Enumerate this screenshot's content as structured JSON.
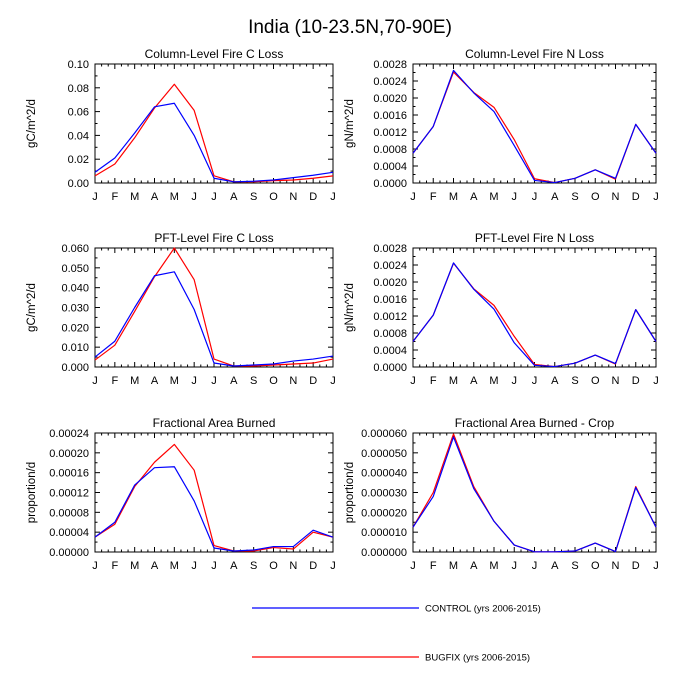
{
  "page": {
    "title": "India (10-23.5N,70-90E)"
  },
  "legend": {
    "items": [
      {
        "series_key": "control",
        "label": "CONTROL (yrs 2006-2015)",
        "color": "#0000ff"
      },
      {
        "series_key": "bugfix",
        "label": "BUGFIX (yrs 2006-2015)",
        "color": "#ff0000"
      }
    ]
  },
  "chart_data": [
    {
      "id": "column-fire-c-loss",
      "type": "line",
      "title": "Column-Level Fire C Loss",
      "xlabel": "",
      "ylabel": "gC/m^2/d",
      "categories": [
        "J",
        "F",
        "M",
        "A",
        "M",
        "J",
        "J",
        "A",
        "S",
        "O",
        "N",
        "D",
        "J"
      ],
      "ylim": [
        0,
        0.1
      ],
      "yticks": [
        0,
        0.02,
        0.04,
        0.06,
        0.08,
        0.1
      ],
      "yticklabels": [
        "0.00",
        "0.02",
        "0.04",
        "0.06",
        "0.08",
        "0.10"
      ],
      "series": [
        {
          "key": "control",
          "name": "CONTROL (yrs 2006-2015)",
          "color": "#0000ff",
          "values": [
            0.009,
            0.021,
            0.042,
            0.064,
            0.067,
            0.04,
            0.004,
            0.001,
            0.0015,
            0.0025,
            0.0045,
            0.0065,
            0.009
          ]
        },
        {
          "key": "bugfix",
          "name": "BUGFIX (yrs 2006-2015)",
          "color": "#ff0000",
          "values": [
            0.006,
            0.016,
            0.038,
            0.063,
            0.083,
            0.061,
            0.006,
            0.001,
            0.001,
            0.002,
            0.0025,
            0.004,
            0.006
          ]
        }
      ]
    },
    {
      "id": "column-fire-n-loss",
      "type": "line",
      "title": "Column-Level Fire N Loss",
      "xlabel": "",
      "ylabel": "gN/m^2/d",
      "categories": [
        "J",
        "F",
        "M",
        "A",
        "M",
        "J",
        "J",
        "A",
        "S",
        "O",
        "N",
        "D",
        "J"
      ],
      "ylim": [
        0,
        0.0028
      ],
      "yticks": [
        0,
        0.0004,
        0.0008,
        0.0012,
        0.0016,
        0.002,
        0.0024,
        0.0028
      ],
      "yticklabels": [
        "0.0000",
        "0.0004",
        "0.0008",
        "0.0012",
        "0.0016",
        "0.0020",
        "0.0024",
        "0.0028"
      ],
      "series": [
        {
          "key": "control",
          "name": "CONTROL (yrs 2006-2015)",
          "color": "#0000ff",
          "values": [
            0.0007,
            0.00133,
            0.00265,
            0.00212,
            0.00168,
            0.00088,
            6e-05,
            1e-05,
            0.00011,
            0.00031,
            0.00011,
            0.00138,
            0.0007
          ]
        },
        {
          "key": "bugfix",
          "name": "BUGFIX (yrs 2006-2015)",
          "color": "#ff0000",
          "values": [
            0.0007,
            0.00133,
            0.00261,
            0.00213,
            0.00178,
            0.00102,
            0.0001,
            1e-05,
            0.00011,
            0.00031,
            9e-05,
            0.00138,
            0.0007
          ]
        }
      ]
    },
    {
      "id": "pft-fire-c-loss",
      "type": "line",
      "title": "PFT-Level Fire C Loss",
      "xlabel": "",
      "ylabel": "gC/m^2/d",
      "categories": [
        "J",
        "F",
        "M",
        "A",
        "M",
        "J",
        "J",
        "A",
        "S",
        "O",
        "N",
        "D",
        "J"
      ],
      "ylim": [
        0,
        0.06
      ],
      "yticks": [
        0,
        0.01,
        0.02,
        0.03,
        0.04,
        0.05,
        0.06
      ],
      "yticklabels": [
        "0.000",
        "0.010",
        "0.020",
        "0.030",
        "0.040",
        "0.050",
        "0.060"
      ],
      "series": [
        {
          "key": "control",
          "name": "CONTROL (yrs 2006-2015)",
          "color": "#0000ff",
          "values": [
            0.005,
            0.013,
            0.03,
            0.046,
            0.048,
            0.029,
            0.002,
            0.0005,
            0.001,
            0.0015,
            0.003,
            0.004,
            0.0055
          ]
        },
        {
          "key": "bugfix",
          "name": "BUGFIX (yrs 2006-2015)",
          "color": "#ff0000",
          "values": [
            0.0035,
            0.011,
            0.028,
            0.0455,
            0.06,
            0.044,
            0.004,
            0.0005,
            0.0005,
            0.001,
            0.0015,
            0.002,
            0.004
          ]
        }
      ]
    },
    {
      "id": "pft-fire-n-loss",
      "type": "line",
      "title": "PFT-Level Fire N Loss",
      "xlabel": "",
      "ylabel": "gN/m^2/d",
      "categories": [
        "J",
        "F",
        "M",
        "A",
        "M",
        "J",
        "J",
        "A",
        "S",
        "O",
        "N",
        "D",
        "J"
      ],
      "ylim": [
        0,
        0.0028
      ],
      "yticks": [
        0,
        0.0004,
        0.0008,
        0.0012,
        0.0016,
        0.002,
        0.0024,
        0.0028
      ],
      "yticklabels": [
        "0.0000",
        "0.0004",
        "0.0008",
        "0.0012",
        "0.0016",
        "0.0020",
        "0.0024",
        "0.0028"
      ],
      "series": [
        {
          "key": "control",
          "name": "CONTROL (yrs 2006-2015)",
          "color": "#0000ff",
          "values": [
            0.0006,
            0.00122,
            0.00245,
            0.00183,
            0.00136,
            0.00057,
            4e-05,
            1e-05,
            9e-05,
            0.00028,
            8e-05,
            0.00135,
            0.0006
          ]
        },
        {
          "key": "bugfix",
          "name": "BUGFIX (yrs 2006-2015)",
          "color": "#ff0000",
          "values": [
            0.0006,
            0.00122,
            0.00244,
            0.00184,
            0.00145,
            0.00072,
            6e-05,
            1e-05,
            9e-05,
            0.00028,
            7e-05,
            0.00135,
            0.0006
          ]
        }
      ]
    },
    {
      "id": "fractional-area-burned",
      "type": "line",
      "title": "Fractional Area Burned",
      "xlabel": "",
      "ylabel": "proportion/d",
      "categories": [
        "J",
        "F",
        "M",
        "A",
        "M",
        "J",
        "J",
        "A",
        "S",
        "O",
        "N",
        "D",
        "J"
      ],
      "ylim": [
        0,
        0.00024
      ],
      "yticks": [
        0,
        4e-05,
        8e-05,
        0.00012,
        0.00016,
        0.0002,
        0.00024
      ],
      "yticklabels": [
        "0.00000",
        "0.00004",
        "0.00008",
        "0.00012",
        "0.00016",
        "0.00020",
        "0.00024"
      ],
      "series": [
        {
          "key": "control",
          "name": "CONTROL (yrs 2006-2015)",
          "color": "#0000ff",
          "values": [
            3e-05,
            6e-05,
            0.000135,
            0.00017,
            0.000172,
            0.000103,
            8e-06,
            2e-06,
            4e-06,
            1.1e-05,
            1.1e-05,
            4.4e-05,
            3e-05
          ]
        },
        {
          "key": "bugfix",
          "name": "BUGFIX (yrs 2006-2015)",
          "color": "#ff0000",
          "values": [
            3e-05,
            5.6e-05,
            0.000132,
            0.000181,
            0.000217,
            0.000165,
            1.3e-05,
            2e-06,
            2e-06,
            9e-06,
            6e-06,
            4e-05,
            3e-05
          ]
        }
      ]
    },
    {
      "id": "fractional-area-burned-crop",
      "type": "line",
      "title": "Fractional Area Burned - Crop",
      "xlabel": "",
      "ylabel": "proportion/d",
      "categories": [
        "J",
        "F",
        "M",
        "A",
        "M",
        "J",
        "J",
        "A",
        "S",
        "O",
        "N",
        "D",
        "J"
      ],
      "ylim": [
        0,
        6e-05
      ],
      "yticks": [
        0,
        1e-05,
        2e-05,
        3e-05,
        4e-05,
        5e-05,
        6e-05
      ],
      "yticklabels": [
        "0.000000",
        "0.000010",
        "0.000020",
        "0.000030",
        "0.000040",
        "0.000050",
        "0.000060"
      ],
      "series": [
        {
          "key": "control",
          "name": "CONTROL (yrs 2006-2015)",
          "color": "#0000ff",
          "values": [
            1.25e-05,
            2.8e-05,
            5.8e-05,
            3.2e-05,
            1.55e-05,
            3.5e-06,
            1e-07,
            1e-07,
            5e-07,
            4.5e-06,
            2e-07,
            3.25e-05,
            1.25e-05
          ]
        },
        {
          "key": "bugfix",
          "name": "BUGFIX (yrs 2006-2015)",
          "color": "#ff0000",
          "values": [
            1.25e-05,
            3e-05,
            5.95e-05,
            3.3e-05,
            1.55e-05,
            3.5e-06,
            1e-07,
            1e-07,
            5e-07,
            4.5e-06,
            2e-07,
            3.3e-05,
            1.25e-05
          ]
        }
      ]
    }
  ]
}
